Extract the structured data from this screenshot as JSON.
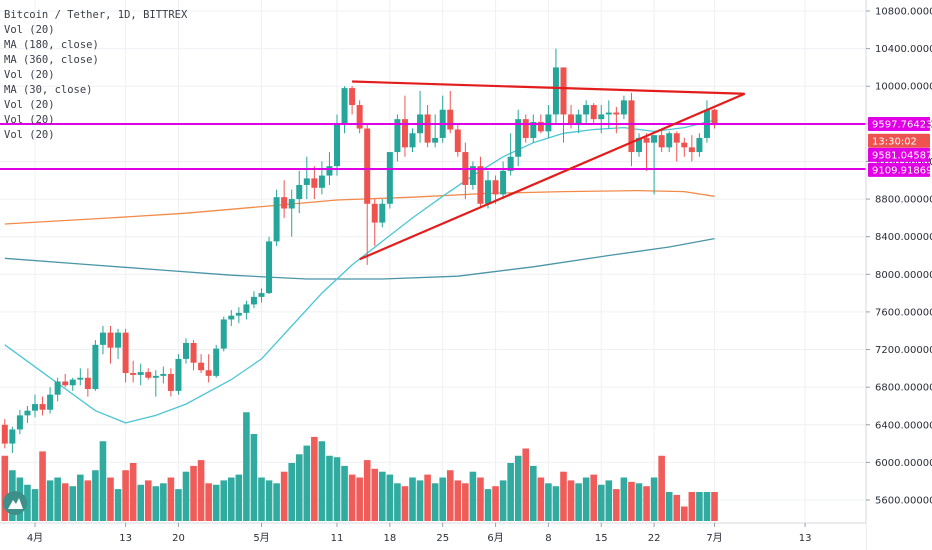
{
  "chart_data": {
    "type": "candlestick",
    "title": "Bitcoin / Tether, 1D, BITTREX",
    "legend": [
      "Vol (20)",
      "MA (180, close)",
      "MA (360, close)",
      "Vol (20)",
      "MA (30, close)",
      "Vol (20)",
      "Vol (20)",
      "Vol (20)"
    ],
    "y_axis": {
      "ticks": [
        "10800.000000",
        "10400.000000",
        "10000.000000",
        "9600.000000",
        "9200.000000",
        "8800.000000",
        "8400.000000",
        "8000.000000",
        "7600.000000",
        "7200.000000",
        "6800.000000",
        "6400.000000",
        "6000.000000",
        "5600.000000"
      ],
      "ylim": [
        5450,
        10980
      ]
    },
    "x_axis": {
      "ticks": [
        {
          "label": "4月",
          "day": 0
        },
        {
          "label": "13",
          "day": 12
        },
        {
          "label": "20",
          "day": 19
        },
        {
          "label": "5月",
          "day": 30
        },
        {
          "label": "11",
          "day": 40
        },
        {
          "label": "18",
          "day": 47
        },
        {
          "label": "25",
          "day": 54
        },
        {
          "label": "6月",
          "day": 61
        },
        {
          "label": "8",
          "day": 68
        },
        {
          "label": "15",
          "day": 75
        },
        {
          "label": "22",
          "day": 82
        },
        {
          "label": "7月",
          "day": 90
        },
        {
          "label": "13",
          "day": 102
        }
      ]
    },
    "candles": [
      {
        "day": -4,
        "o": 6400,
        "h": 6460,
        "l": 6150,
        "c": 6200
      },
      {
        "day": -3,
        "o": 6200,
        "h": 6380,
        "l": 6100,
        "c": 6350
      },
      {
        "day": -2,
        "o": 6350,
        "h": 6560,
        "l": 6300,
        "c": 6500
      },
      {
        "day": -1,
        "o": 6500,
        "h": 6600,
        "l": 6420,
        "c": 6550
      },
      {
        "day": 0,
        "o": 6550,
        "h": 6720,
        "l": 6480,
        "c": 6620
      },
      {
        "day": 1,
        "o": 6620,
        "h": 6700,
        "l": 6500,
        "c": 6560
      },
      {
        "day": 2,
        "o": 6560,
        "h": 6800,
        "l": 6520,
        "c": 6720
      },
      {
        "day": 3,
        "o": 6720,
        "h": 6900,
        "l": 6650,
        "c": 6860
      },
      {
        "day": 4,
        "o": 6860,
        "h": 6940,
        "l": 6800,
        "c": 6820
      },
      {
        "day": 5,
        "o": 6820,
        "h": 6900,
        "l": 6760,
        "c": 6880
      },
      {
        "day": 6,
        "o": 6880,
        "h": 7000,
        "l": 6820,
        "c": 6900
      },
      {
        "day": 7,
        "o": 6900,
        "h": 7000,
        "l": 6700,
        "c": 6780
      },
      {
        "day": 8,
        "o": 6780,
        "h": 7300,
        "l": 6760,
        "c": 7250
      },
      {
        "day": 9,
        "o": 7250,
        "h": 7450,
        "l": 7150,
        "c": 7380
      },
      {
        "day": 10,
        "o": 7380,
        "h": 7450,
        "l": 7050,
        "c": 7220
      },
      {
        "day": 11,
        "o": 7220,
        "h": 7420,
        "l": 7100,
        "c": 7380
      },
      {
        "day": 12,
        "o": 7380,
        "h": 7420,
        "l": 6850,
        "c": 6950
      },
      {
        "day": 13,
        "o": 6950,
        "h": 7080,
        "l": 6850,
        "c": 6930
      },
      {
        "day": 14,
        "o": 6930,
        "h": 7050,
        "l": 6820,
        "c": 6960
      },
      {
        "day": 15,
        "o": 6960,
        "h": 7000,
        "l": 6880,
        "c": 6900
      },
      {
        "day": 16,
        "o": 6900,
        "h": 6980,
        "l": 6700,
        "c": 6920
      },
      {
        "day": 17,
        "o": 6920,
        "h": 7020,
        "l": 6840,
        "c": 6940
      },
      {
        "day": 18,
        "o": 6940,
        "h": 7000,
        "l": 6700,
        "c": 6760
      },
      {
        "day": 19,
        "o": 6760,
        "h": 7150,
        "l": 6720,
        "c": 7100
      },
      {
        "day": 20,
        "o": 7100,
        "h": 7320,
        "l": 7050,
        "c": 7270
      },
      {
        "day": 21,
        "o": 7270,
        "h": 7300,
        "l": 6980,
        "c": 7060
      },
      {
        "day": 22,
        "o": 7060,
        "h": 7150,
        "l": 6950,
        "c": 6980
      },
      {
        "day": 23,
        "o": 6980,
        "h": 7150,
        "l": 6850,
        "c": 6920
      },
      {
        "day": 24,
        "o": 6920,
        "h": 7250,
        "l": 6900,
        "c": 7210
      },
      {
        "day": 25,
        "o": 7210,
        "h": 7550,
        "l": 7180,
        "c": 7520
      },
      {
        "day": 26,
        "o": 7520,
        "h": 7620,
        "l": 7450,
        "c": 7560
      },
      {
        "day": 27,
        "o": 7560,
        "h": 7650,
        "l": 7480,
        "c": 7590
      },
      {
        "day": 28,
        "o": 7590,
        "h": 7720,
        "l": 7520,
        "c": 7680
      },
      {
        "day": 29,
        "o": 7680,
        "h": 7820,
        "l": 7640,
        "c": 7760
      },
      {
        "day": 30,
        "o": 7760,
        "h": 7850,
        "l": 7700,
        "c": 7800
      },
      {
        "day": 31,
        "o": 7800,
        "h": 8400,
        "l": 7790,
        "c": 8350
      },
      {
        "day": 32,
        "o": 8350,
        "h": 8900,
        "l": 8300,
        "c": 8820
      },
      {
        "day": 33,
        "o": 8820,
        "h": 9000,
        "l": 8600,
        "c": 8700
      },
      {
        "day": 34,
        "o": 8700,
        "h": 8900,
        "l": 8400,
        "c": 8800
      },
      {
        "day": 35,
        "o": 8800,
        "h": 9100,
        "l": 8650,
        "c": 8950
      },
      {
        "day": 36,
        "o": 8950,
        "h": 9250,
        "l": 8800,
        "c": 9020
      },
      {
        "day": 37,
        "o": 9020,
        "h": 9150,
        "l": 8800,
        "c": 8920
      },
      {
        "day": 38,
        "o": 8920,
        "h": 9200,
        "l": 8850,
        "c": 9050
      },
      {
        "day": 39,
        "o": 9050,
        "h": 9300,
        "l": 8950,
        "c": 9150
      },
      {
        "day": 40,
        "o": 9150,
        "h": 9700,
        "l": 9050,
        "c": 9600
      },
      {
        "day": 41,
        "o": 9600,
        "h": 10000,
        "l": 9500,
        "c": 9980
      },
      {
        "day": 42,
        "o": 9980,
        "h": 10000,
        "l": 9700,
        "c": 9800
      },
      {
        "day": 43,
        "o": 9800,
        "h": 9850,
        "l": 9500,
        "c": 9550
      },
      {
        "day": 44,
        "o": 9550,
        "h": 9600,
        "l": 8100,
        "c": 8750
      },
      {
        "day": 45,
        "o": 8750,
        "h": 8800,
        "l": 8300,
        "c": 8550
      },
      {
        "day": 46,
        "o": 8550,
        "h": 8800,
        "l": 8500,
        "c": 8750
      },
      {
        "day": 47,
        "o": 8750,
        "h": 9300,
        "l": 8700,
        "c": 9300
      },
      {
        "day": 48,
        "o": 9300,
        "h": 9700,
        "l": 9200,
        "c": 9650
      },
      {
        "day": 49,
        "o": 9650,
        "h": 9900,
        "l": 9250,
        "c": 9350
      },
      {
        "day": 50,
        "o": 9350,
        "h": 9550,
        "l": 9300,
        "c": 9500
      },
      {
        "day": 51,
        "o": 9500,
        "h": 9950,
        "l": 9400,
        "c": 9700
      },
      {
        "day": 52,
        "o": 9700,
        "h": 9800,
        "l": 9350,
        "c": 9400
      },
      {
        "day": 53,
        "o": 9400,
        "h": 9700,
        "l": 9350,
        "c": 9450
      },
      {
        "day": 54,
        "o": 9450,
        "h": 9900,
        "l": 9400,
        "c": 9750
      },
      {
        "day": 55,
        "o": 9750,
        "h": 9950,
        "l": 9500,
        "c": 9540
      },
      {
        "day": 56,
        "o": 9540,
        "h": 9600,
        "l": 9250,
        "c": 9300
      },
      {
        "day": 57,
        "o": 9300,
        "h": 9400,
        "l": 8800,
        "c": 8950
      },
      {
        "day": 58,
        "o": 8950,
        "h": 9200,
        "l": 8900,
        "c": 9150
      },
      {
        "day": 59,
        "o": 9150,
        "h": 9250,
        "l": 8700,
        "c": 8750
      },
      {
        "day": 60,
        "o": 8750,
        "h": 9100,
        "l": 8700,
        "c": 9000
      },
      {
        "day": 61,
        "o": 9000,
        "h": 9050,
        "l": 8750,
        "c": 8850
      },
      {
        "day": 62,
        "o": 8850,
        "h": 9200,
        "l": 8800,
        "c": 9100
      },
      {
        "day": 63,
        "o": 9100,
        "h": 9500,
        "l": 9050,
        "c": 9250
      },
      {
        "day": 64,
        "o": 9250,
        "h": 9750,
        "l": 9150,
        "c": 9650
      },
      {
        "day": 65,
        "o": 9650,
        "h": 9700,
        "l": 9400,
        "c": 9450
      },
      {
        "day": 66,
        "o": 9450,
        "h": 9700,
        "l": 9400,
        "c": 9620
      },
      {
        "day": 67,
        "o": 9620,
        "h": 9700,
        "l": 9500,
        "c": 9520
      },
      {
        "day": 68,
        "o": 9520,
        "h": 9800,
        "l": 9450,
        "c": 9700
      },
      {
        "day": 69,
        "o": 9700,
        "h": 10400,
        "l": 9600,
        "c": 10200
      },
      {
        "day": 70,
        "o": 10200,
        "h": 10200,
        "l": 9400,
        "c": 9700
      },
      {
        "day": 71,
        "o": 9700,
        "h": 9800,
        "l": 9550,
        "c": 9600
      },
      {
        "day": 72,
        "o": 9600,
        "h": 9750,
        "l": 9500,
        "c": 9700
      },
      {
        "day": 73,
        "o": 9700,
        "h": 9850,
        "l": 9600,
        "c": 9800
      },
      {
        "day": 74,
        "o": 9800,
        "h": 9820,
        "l": 9600,
        "c": 9650
      },
      {
        "day": 75,
        "o": 9650,
        "h": 9800,
        "l": 9500,
        "c": 9700
      },
      {
        "day": 76,
        "o": 9700,
        "h": 9850,
        "l": 9550,
        "c": 9720
      },
      {
        "day": 77,
        "o": 9720,
        "h": 9780,
        "l": 9500,
        "c": 9700
      },
      {
        "day": 78,
        "o": 9700,
        "h": 9900,
        "l": 9650,
        "c": 9850
      },
      {
        "day": 79,
        "o": 9850,
        "h": 9930,
        "l": 9150,
        "c": 9300
      },
      {
        "day": 80,
        "o": 9300,
        "h": 9500,
        "l": 9250,
        "c": 9450
      },
      {
        "day": 81,
        "o": 9450,
        "h": 9500,
        "l": 9100,
        "c": 9400
      },
      {
        "day": 82,
        "o": 9400,
        "h": 9480,
        "l": 8850,
        "c": 9480
      },
      {
        "day": 83,
        "o": 9480,
        "h": 9550,
        "l": 9300,
        "c": 9350
      },
      {
        "day": 84,
        "o": 9350,
        "h": 9520,
        "l": 9300,
        "c": 9500
      },
      {
        "day": 85,
        "o": 9500,
        "h": 9520,
        "l": 9200,
        "c": 9400
      },
      {
        "day": 86,
        "o": 9400,
        "h": 9450,
        "l": 9250,
        "c": 9350
      },
      {
        "day": 87,
        "o": 9350,
        "h": 9480,
        "l": 9200,
        "c": 9300
      },
      {
        "day": 88,
        "o": 9300,
        "h": 9500,
        "l": 9250,
        "c": 9450
      },
      {
        "day": 89,
        "o": 9450,
        "h": 9850,
        "l": 9400,
        "c": 9750
      },
      {
        "day": 90,
        "o": 9750,
        "h": 9760,
        "l": 9550,
        "c": 9600
      }
    ],
    "volume": [
      0.45,
      0.35,
      0.3,
      0.25,
      0.22,
      0.48,
      0.28,
      0.3,
      0.26,
      0.24,
      0.32,
      0.28,
      0.35,
      0.55,
      0.3,
      0.22,
      0.35,
      0.4,
      0.25,
      0.28,
      0.24,
      0.26,
      0.3,
      0.22,
      0.34,
      0.38,
      0.42,
      0.26,
      0.25,
      0.28,
      0.3,
      0.32,
      0.75,
      0.6,
      0.3,
      0.28,
      0.26,
      0.34,
      0.4,
      0.46,
      0.52,
      0.58,
      0.55,
      0.45,
      0.44,
      0.38,
      0.32,
      0.3,
      0.42,
      0.36,
      0.34,
      0.32,
      0.26,
      0.24,
      0.3,
      0.28,
      0.32,
      0.26,
      0.3,
      0.35,
      0.28,
      0.26,
      0.34,
      0.3,
      0.22,
      0.24,
      0.28,
      0.4,
      0.45,
      0.5,
      0.38,
      0.3,
      0.26,
      0.24,
      0.34,
      0.28,
      0.26,
      0.3,
      0.32,
      0.25,
      0.28,
      0.22,
      0.3,
      0.27,
      0.26,
      0.24,
      0.3,
      0.45,
      0.2,
      0.18,
      0.1
    ],
    "ma30": [
      [
        -4,
        7250
      ],
      [
        2,
        6900
      ],
      [
        8,
        6550
      ],
      [
        12,
        6420
      ],
      [
        16,
        6500
      ],
      [
        20,
        6620
      ],
      [
        26,
        6880
      ],
      [
        30,
        7100
      ],
      [
        34,
        7450
      ],
      [
        38,
        7800
      ],
      [
        42,
        8100
      ],
      [
        46,
        8350
      ],
      [
        50,
        8600
      ],
      [
        54,
        8830
      ],
      [
        58,
        9050
      ],
      [
        62,
        9250
      ],
      [
        66,
        9400
      ],
      [
        70,
        9500
      ],
      [
        74,
        9540
      ],
      [
        78,
        9560
      ],
      [
        82,
        9520
      ],
      [
        86,
        9560
      ],
      [
        90,
        9640
      ]
    ],
    "ma180": [
      [
        -4,
        8535
      ],
      [
        10,
        8600
      ],
      [
        20,
        8650
      ],
      [
        30,
        8720
      ],
      [
        40,
        8790
      ],
      [
        50,
        8820
      ],
      [
        60,
        8860
      ],
      [
        70,
        8880
      ],
      [
        80,
        8890
      ],
      [
        86,
        8880
      ],
      [
        90,
        8830
      ]
    ],
    "ma360": [
      [
        -4,
        8170
      ],
      [
        6,
        8110
      ],
      [
        16,
        8050
      ],
      [
        26,
        7990
      ],
      [
        36,
        7950
      ],
      [
        46,
        7950
      ],
      [
        56,
        7980
      ],
      [
        66,
        8080
      ],
      [
        76,
        8200
      ],
      [
        84,
        8290
      ],
      [
        90,
        8380
      ]
    ],
    "horizontal_lines": [
      {
        "price": 9597.76423,
        "color": "#e100e6"
      },
      {
        "price": 9120,
        "color": "#e100e6"
      }
    ],
    "trend_lines": [
      {
        "from": [
          42,
          10050
        ],
        "to": [
          94,
          9920
        ],
        "color": "#e31d1d"
      },
      {
        "from": [
          43,
          8160
        ],
        "to": [
          94,
          9920
        ],
        "color": "#e31d1d"
      }
    ],
    "price_tags": [
      {
        "label": "9597.76423",
        "price": 9597.76423,
        "color": "#e100e6"
      },
      {
        "label": "13:30:02",
        "price": 9420,
        "color": "#ef5350"
      },
      {
        "label": "9581.04587",
        "price": 9270,
        "color": "#e100e6"
      },
      {
        "label": "9109.91869",
        "price": 9109.91869,
        "color": "#e100e6"
      }
    ],
    "colors": {
      "up": "#26a69a",
      "down": "#ef5350",
      "ma30": "#4cc6d4",
      "ma180": "#f28a4a",
      "ma360": "#4a95a7",
      "grid": "#eef0f4"
    }
  }
}
